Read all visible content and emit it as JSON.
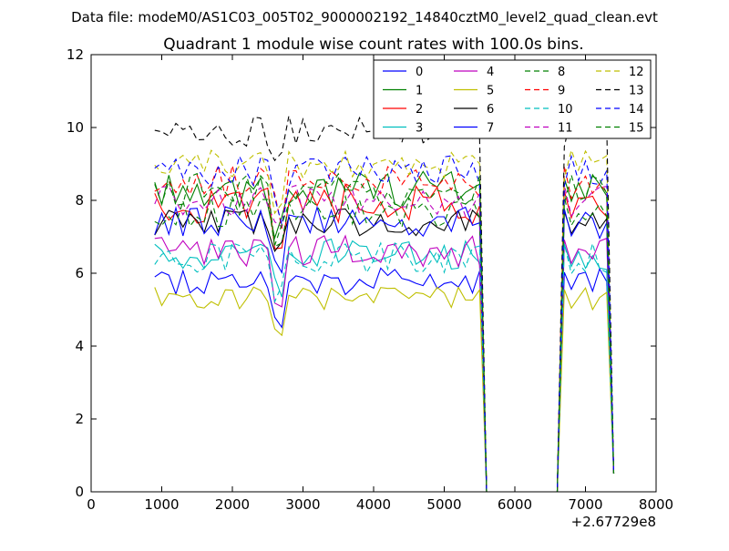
{
  "chart_data": {
    "type": "line",
    "suptitle": "Data file: modeM0/AS1C03_005T02_9000002192_14840cztM0_level2_quad_clean.evt",
    "title": "Quadrant 1 module wise count rates with 100.0s bins.",
    "xlabel": "",
    "ylabel": "",
    "x_offset_label": "+2.67729e8",
    "xlim": [
      0,
      8000
    ],
    "ylim": [
      0,
      12
    ],
    "xticks": [
      0,
      1000,
      2000,
      3000,
      4000,
      5000,
      6000,
      7000,
      8000
    ],
    "xtick_labels": [
      "0",
      "1000",
      "2000",
      "3000",
      "4000",
      "5000",
      "6000",
      "7000",
      "8000"
    ],
    "yticks": [
      0,
      2,
      4,
      6,
      8,
      10,
      12
    ],
    "ytick_labels": [
      "0",
      "2",
      "4",
      "6",
      "8",
      "10",
      "12"
    ],
    "legend_position": "top-right",
    "legend_columns": 4,
    "series": [
      {
        "name": "0",
        "color": "#0000ff",
        "dash": "solid",
        "base": 5.8,
        "var": 0.35
      },
      {
        "name": "1",
        "color": "#008000",
        "dash": "solid",
        "base": 8.3,
        "var": 0.45
      },
      {
        "name": "2",
        "color": "#ff0000",
        "dash": "solid",
        "base": 7.9,
        "var": 0.5
      },
      {
        "name": "3",
        "color": "#00bfbf",
        "dash": "solid",
        "base": 6.5,
        "var": 0.4
      },
      {
        "name": "4",
        "color": "#bf00bf",
        "dash": "solid",
        "base": 6.6,
        "var": 0.4
      },
      {
        "name": "5",
        "color": "#bfbf00",
        "dash": "solid",
        "base": 5.3,
        "var": 0.3
      },
      {
        "name": "6",
        "color": "#000000",
        "dash": "solid",
        "base": 7.4,
        "var": 0.35
      },
      {
        "name": "7",
        "color": "#0000ff",
        "dash": "solid",
        "base": 7.4,
        "var": 0.4
      },
      {
        "name": "8",
        "color": "#008000",
        "dash": "dashed",
        "base": 7.7,
        "var": 0.4
      },
      {
        "name": "9",
        "color": "#ff0000",
        "dash": "dashed",
        "base": 8.5,
        "var": 0.45
      },
      {
        "name": "10",
        "color": "#00bfbf",
        "dash": "dashed",
        "base": 6.4,
        "var": 0.4
      },
      {
        "name": "11",
        "color": "#bf00bf",
        "dash": "dashed",
        "base": 8.0,
        "var": 0.4
      },
      {
        "name": "12",
        "color": "#bfbf00",
        "dash": "dashed",
        "base": 9.0,
        "var": 0.35
      },
      {
        "name": "13",
        "color": "#000000",
        "dash": "dashed",
        "base": 9.9,
        "var": 0.4
      },
      {
        "name": "14",
        "color": "#0000ff",
        "dash": "dashed",
        "base": 8.8,
        "var": 0.4
      },
      {
        "name": "15",
        "color": "#008000",
        "dash": "dashed",
        "base": 8.3,
        "var": 0.4
      }
    ],
    "x_start": 900,
    "x_step": 100,
    "gap_start": 5600,
    "gap_end": 6600,
    "x_end": 7400,
    "dip_x": 2650,
    "dip_amount": 1.3,
    "end_value": 0.5
  }
}
